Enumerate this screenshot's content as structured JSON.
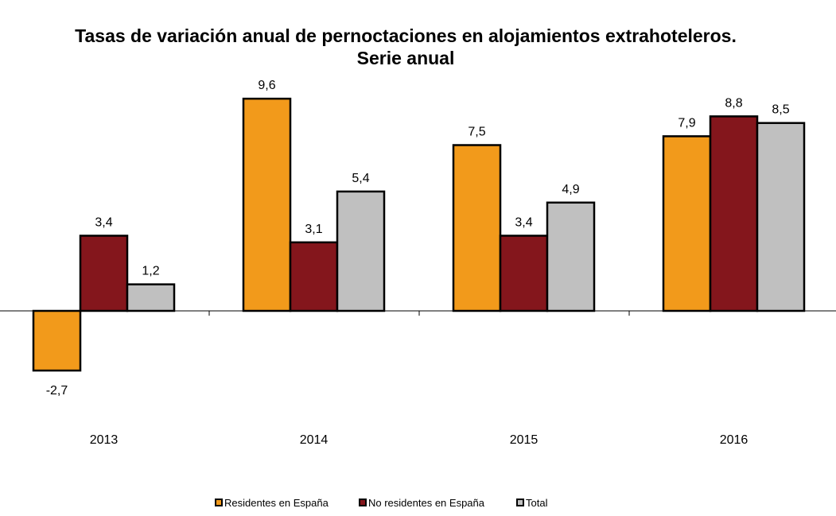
{
  "chart_data": {
    "type": "bar",
    "title": "Tasas de variación anual de pernoctaciones en alojamientos extrahoteleros.",
    "subtitle": "Serie anual",
    "categories": [
      "2013",
      "2014",
      "2015",
      "2016"
    ],
    "series": [
      {
        "name": "Residentes en España",
        "color": "#F29A1B",
        "values": [
          -2.7,
          9.6,
          7.5,
          7.9
        ],
        "labels": [
          "-2,7",
          "9,6",
          "7,5",
          "7,9"
        ]
      },
      {
        "name": "No residentes en España",
        "color": "#84161C",
        "values": [
          3.4,
          3.1,
          3.4,
          8.8
        ],
        "labels": [
          "3,4",
          "3,1",
          "3,4",
          "8,8"
        ]
      },
      {
        "name": "Total",
        "color": "#C0C0C0",
        "values": [
          1.2,
          5.4,
          4.9,
          8.5
        ],
        "labels": [
          "1,2",
          "5,4",
          "4,9",
          "8,5"
        ]
      }
    ],
    "xlabel": "",
    "ylabel": "",
    "grid": false,
    "legend": "bottom"
  }
}
